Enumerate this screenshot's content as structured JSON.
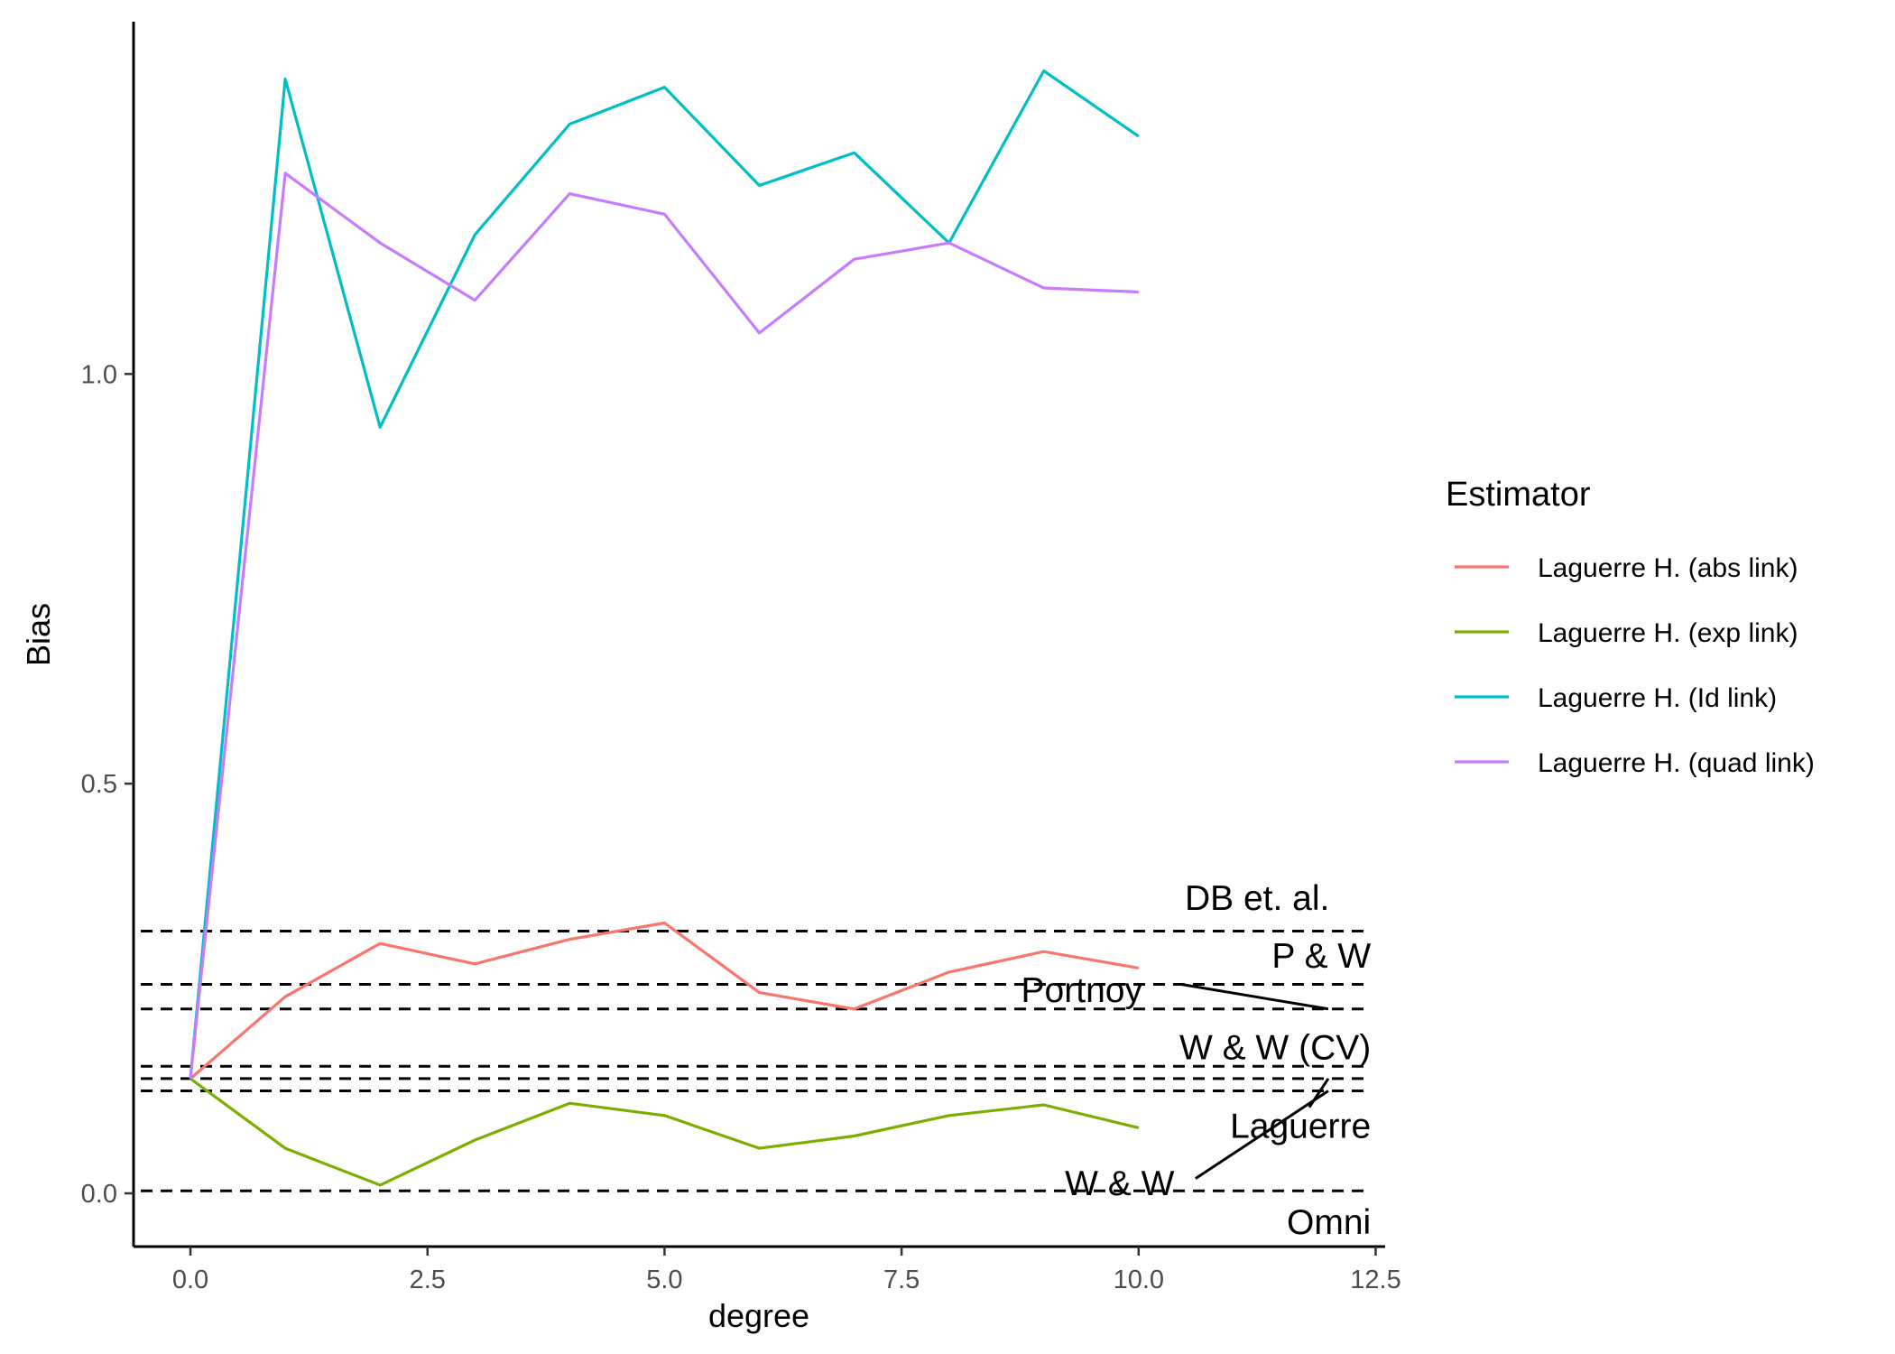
{
  "chart_data": {
    "type": "line",
    "xlabel": "degree",
    "ylabel": "Bias",
    "xlim": [
      -0.6,
      12.6
    ],
    "ylim": [
      -0.065,
      1.43
    ],
    "x_ticks": [
      0.0,
      2.5,
      5.0,
      7.5,
      10.0,
      12.5
    ],
    "x_tick_labels": [
      "0.0",
      "2.5",
      "5.0",
      "7.5",
      "10.0",
      "12.5"
    ],
    "y_ticks": [
      0.0,
      0.5,
      1.0
    ],
    "y_tick_labels": [
      "0.0",
      "0.5",
      "1.0"
    ],
    "grid": false,
    "legend": {
      "title": "Estimator",
      "placement": "right",
      "entries": [
        "Laguerre H. (abs link)",
        "Laguerre H. (exp link)",
        "Laguerre H. (Id link)",
        "Laguerre H. (quad link)"
      ]
    },
    "x": [
      0,
      1,
      2,
      3,
      4,
      5,
      6,
      7,
      8,
      9,
      10
    ],
    "series": [
      {
        "name": "Laguerre H. (abs link)",
        "color": "#F8766D",
        "values": [
          0.14,
          0.24,
          0.305,
          0.28,
          0.31,
          0.33,
          0.245,
          0.225,
          0.27,
          0.295,
          0.275
        ]
      },
      {
        "name": "Laguerre H. (exp link)",
        "color": "#7CAE00",
        "values": [
          0.14,
          0.055,
          0.01,
          0.065,
          0.11,
          0.095,
          0.055,
          0.07,
          0.095,
          0.108,
          0.08
        ]
      },
      {
        "name": "Laguerre H. (Id link)",
        "color": "#00BFC4",
        "values": [
          0.14,
          1.36,
          0.935,
          1.17,
          1.305,
          1.35,
          1.23,
          1.27,
          1.16,
          1.37,
          1.29
        ]
      },
      {
        "name": "Laguerre H. (quad link)",
        "color": "#C77CFF",
        "values": [
          0.14,
          1.245,
          1.16,
          1.09,
          1.22,
          1.195,
          1.05,
          1.14,
          1.16,
          1.105,
          1.1
        ]
      }
    ],
    "reference_lines": [
      {
        "label": "DB et. al.",
        "y": 0.32
      },
      {
        "label": "P & W",
        "y": 0.255
      },
      {
        "label": "Portnoy",
        "y": 0.225
      },
      {
        "label": "W & W (CV)",
        "y": 0.155
      },
      {
        "label": "Laguerre",
        "y": 0.14
      },
      {
        "label": "W & W",
        "y": 0.125
      },
      {
        "label": "Omni",
        "y": 0.003
      }
    ]
  }
}
